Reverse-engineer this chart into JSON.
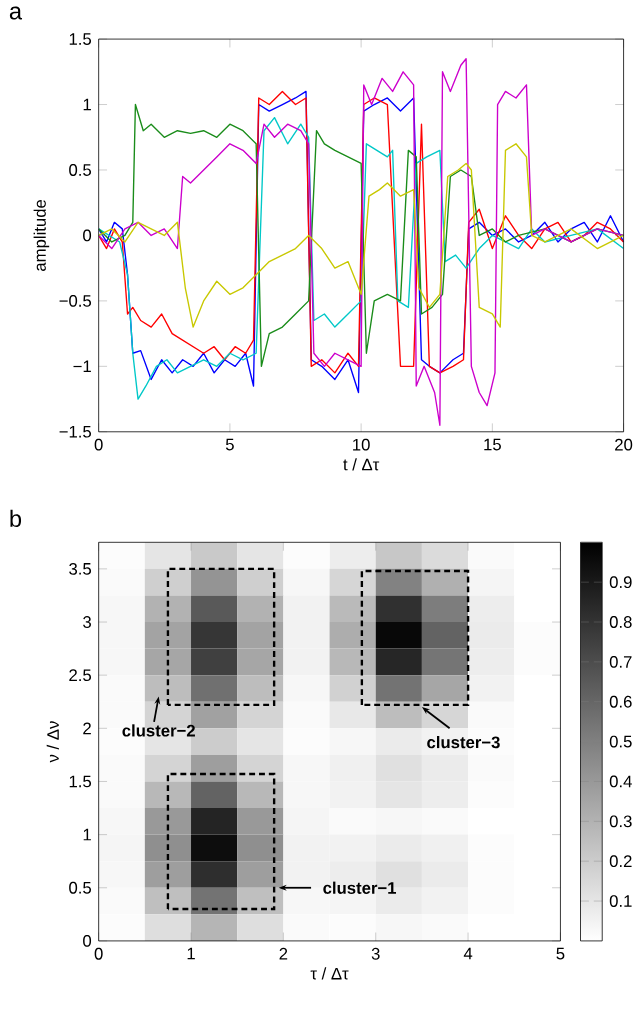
{
  "chart_data": [
    {
      "type": "line",
      "title": "a",
      "xlabel": "t / Δτ",
      "ylabel": "amplitude",
      "xlim": [
        0,
        20
      ],
      "xticks": [
        0,
        5,
        10,
        15,
        20
      ],
      "ylim": [
        -1.5,
        1.5
      ],
      "yticks": [
        {
          "value": -1.5,
          "label": "−1.5"
        },
        {
          "value": -1,
          "label": "−1"
        },
        {
          "value": -0.5,
          "label": "−0.5"
        },
        0,
        0.5,
        1,
        1.5
      ],
      "series": [
        {
          "color": "#0000ff",
          "x": [
            0,
            0.3,
            0.6,
            0.9,
            1.1,
            1.3,
            1.6,
            2,
            2.4,
            2.8,
            3.2,
            3.6,
            4,
            4.4,
            4.8,
            5.2,
            5.6,
            5.9,
            6.1,
            6.5,
            7,
            7.5,
            7.9,
            8.1,
            8.5,
            9,
            9.5,
            9.9,
            10.1,
            10.5,
            11,
            11.5,
            12,
            12.3,
            12.6,
            13,
            13.5,
            13.9,
            14.1,
            14.5,
            15,
            15.5,
            16,
            16.5,
            17,
            17.5,
            18,
            18.5,
            19,
            19.5,
            20
          ],
          "values": [
            0.05,
            -0.05,
            0.1,
            0.05,
            -0.3,
            -0.9,
            -0.88,
            -1.1,
            -0.95,
            -1.05,
            -0.95,
            -1.0,
            -0.9,
            -1.05,
            -0.95,
            -1.0,
            -0.9,
            -1.15,
            1.0,
            0.95,
            1.0,
            1.05,
            1.1,
            -0.95,
            -1.0,
            -1.1,
            -0.95,
            -1.2,
            0.95,
            1.0,
            1.05,
            0.95,
            1.05,
            -0.95,
            -1.0,
            -1.05,
            -0.95,
            -0.9,
            0.05,
            0.1,
            0.0,
            0.05,
            -0.05,
            0.0,
            0.1,
            -0.05,
            0.05,
            0.1,
            -0.05,
            0.15,
            -0.05
          ]
        },
        {
          "color": "#ff0000",
          "x": [
            0,
            0.3,
            0.6,
            0.9,
            1.1,
            1.3,
            1.6,
            2,
            2.4,
            2.8,
            3.2,
            3.6,
            4,
            4.4,
            4.8,
            5.2,
            5.6,
            5.9,
            6.1,
            6.5,
            7,
            7.5,
            7.9,
            8.1,
            8.5,
            9,
            9.5,
            9.9,
            10.1,
            10.5,
            11,
            11.5,
            12,
            12.3,
            12.6,
            13,
            13.5,
            13.9,
            14.1,
            14.5,
            15,
            15.5,
            16,
            16.5,
            17,
            17.5,
            18,
            18.5,
            19,
            19.5,
            20
          ],
          "values": [
            0,
            -0.1,
            0.05,
            -0.05,
            -0.6,
            -0.55,
            -0.65,
            -0.7,
            -0.6,
            -0.75,
            -0.8,
            -0.85,
            -0.9,
            -0.85,
            -0.95,
            -0.85,
            -0.9,
            -0.8,
            1.05,
            1.0,
            1.1,
            1.0,
            1.05,
            -1.0,
            -0.95,
            -1.05,
            -0.9,
            -1.0,
            1.0,
            1.05,
            1.0,
            -1.0,
            -1.0,
            0.85,
            -1.0,
            -1.05,
            -1.0,
            -0.95,
            0.1,
            0.2,
            -0.1,
            0.15,
            0.0,
            -0.1,
            0.05,
            0.1,
            -0.05,
            0.0,
            0.1,
            0.05,
            -0.05
          ]
        },
        {
          "color": "#00c8c8",
          "x": [
            0,
            0.4,
            0.8,
            1.1,
            1.3,
            1.5,
            1.8,
            2.2,
            2.6,
            3,
            3.5,
            4,
            4.5,
            5,
            5.5,
            6,
            6.3,
            6.7,
            7.2,
            7.7,
            8.0,
            8.2,
            8.6,
            9,
            9.5,
            10,
            10.2,
            10.6,
            11,
            11.2,
            11.4,
            11.8,
            12.1,
            12.5,
            13,
            13.2,
            13.6,
            14,
            14.5,
            15,
            15.5,
            16,
            16.5,
            17,
            18,
            19,
            20
          ],
          "values": [
            0.05,
            0,
            -0.05,
            -0.3,
            -0.9,
            -1.25,
            -1.15,
            -1.0,
            -0.95,
            -1.05,
            -1.0,
            -0.95,
            -1.0,
            -0.9,
            -0.95,
            -0.9,
            0.8,
            0.9,
            0.7,
            0.85,
            0.75,
            -0.65,
            -0.6,
            -0.7,
            -0.6,
            -0.5,
            0.7,
            0.65,
            0.6,
            0.65,
            -0.5,
            -0.55,
            0.55,
            0.6,
            0.65,
            -0.2,
            -0.15,
            -0.25,
            -0.1,
            0.0,
            -0.05,
            -0.1,
            0.05,
            -0.05,
            0.0,
            0.05,
            -0.1
          ]
        },
        {
          "color": "#1a8c1a",
          "x": [
            0,
            0.5,
            1,
            1.3,
            1.4,
            1.7,
            2,
            2.5,
            3,
            3.5,
            4,
            4.5,
            5,
            5.5,
            6,
            6.2,
            6.5,
            7,
            7.5,
            8,
            8.3,
            8.6,
            9,
            9.5,
            10,
            10.2,
            10.5,
            11,
            11.5,
            11.8,
            12.1,
            12.3,
            12.7,
            13.1,
            13.4,
            13.8,
            14.2,
            14.5,
            15,
            15.5,
            16,
            17,
            18,
            19,
            20
          ],
          "values": [
            0.05,
            -0.05,
            0.0,
            0.1,
            1.0,
            0.8,
            0.85,
            0.75,
            0.8,
            0.78,
            0.8,
            0.75,
            0.85,
            0.8,
            0.7,
            -1.0,
            -0.75,
            -0.7,
            -0.6,
            -0.5,
            0.8,
            0.7,
            0.65,
            0.6,
            0.55,
            -0.9,
            -0.5,
            -0.45,
            -0.5,
            0.65,
            0.6,
            -0.6,
            -0.55,
            -0.45,
            0.45,
            0.5,
            0.45,
            0.0,
            0.05,
            -0.05,
            0.0,
            0.05,
            -0.05,
            0.05,
            0.0
          ]
        },
        {
          "color": "#cc00cc",
          "x": [
            0,
            0.5,
            1,
            1.5,
            2,
            2.5,
            3,
            3.2,
            3.5,
            4,
            4.5,
            5,
            5.5,
            6,
            6.3,
            6.7,
            7.2,
            7.7,
            8.0,
            8.2,
            8.6,
            9,
            9.5,
            10,
            10.1,
            10.4,
            10.8,
            11.2,
            11.6,
            12.0,
            12.1,
            12.4,
            12.8,
            13,
            13.1,
            13.4,
            13.8,
            14,
            14.2,
            14.5,
            14.8,
            15.1,
            15.2,
            15.5,
            15.9,
            16.3,
            16.5,
            17,
            18,
            19,
            20
          ],
          "values": [
            0.0,
            -0.1,
            0.05,
            0.1,
            0.0,
            0.05,
            -0.1,
            0.45,
            0.4,
            0.5,
            0.6,
            0.7,
            0.65,
            0.55,
            0.85,
            0.75,
            0.85,
            0.8,
            0.7,
            -0.9,
            -1.0,
            -0.9,
            -0.95,
            -1.0,
            1.15,
            1.0,
            1.2,
            1.1,
            1.25,
            1.15,
            -1.15,
            -1.0,
            -1.2,
            -1.45,
            1.25,
            1.1,
            1.3,
            1.35,
            -1.0,
            -1.2,
            -1.3,
            -1.05,
            1.0,
            1.1,
            1.05,
            1.15,
            0.0,
            0.05,
            -0.05,
            0.05,
            0.0
          ]
        },
        {
          "color": "#c8c800",
          "x": [
            0,
            0.5,
            1,
            1.5,
            2,
            2.5,
            3,
            3.3,
            3.6,
            4,
            4.5,
            5,
            5.5,
            6,
            6.5,
            7,
            7.5,
            8,
            8.5,
            9,
            9.5,
            10,
            10.3,
            10.7,
            11,
            11.5,
            12,
            12.2,
            12.6,
            13,
            13.3,
            13.7,
            14,
            14.2,
            14.5,
            15,
            15.3,
            15.5,
            15.9,
            16.3,
            16.5,
            17,
            18,
            19,
            20
          ],
          "values": [
            0.0,
            0.05,
            -0.05,
            0.1,
            0.05,
            0.0,
            0.1,
            -0.4,
            -0.7,
            -0.5,
            -0.35,
            -0.45,
            -0.4,
            -0.3,
            -0.2,
            -0.15,
            -0.1,
            0.0,
            -0.1,
            -0.25,
            -0.2,
            -0.45,
            0.3,
            0.35,
            0.4,
            0.3,
            0.35,
            -0.4,
            -0.55,
            -0.45,
            0.45,
            0.5,
            0.55,
            0.5,
            -0.55,
            -0.6,
            -0.7,
            0.65,
            0.7,
            0.6,
            0.0,
            -0.05,
            0.05,
            -0.1,
            0.0
          ]
        }
      ]
    },
    {
      "type": "heatmap",
      "title": "b",
      "xlabel": "τ / Δτ",
      "ylabel": "ν / Δν",
      "xlim": [
        0,
        5
      ],
      "xticks": [
        0,
        1,
        2,
        3,
        4,
        5
      ],
      "ylim": [
        0,
        3.75
      ],
      "yticks": [
        0,
        0.5,
        1,
        1.5,
        2,
        2.5,
        3,
        3.5
      ],
      "clim": [
        0,
        1
      ],
      "cticks": [
        0.1,
        0.2,
        0.3,
        0.4,
        0.5,
        0.6,
        0.7,
        0.8,
        0.9
      ],
      "cells": [
        [
          0.01,
          0.1,
          0.21,
          0.1,
          0.01,
          0.07,
          0.22,
          0.14,
          0.02,
          0
        ],
        [
          0.02,
          0.19,
          0.42,
          0.19,
          0.03,
          0.16,
          0.49,
          0.31,
          0.04,
          0
        ],
        [
          0.03,
          0.3,
          0.65,
          0.3,
          0.05,
          0.27,
          0.81,
          0.51,
          0.07,
          0
        ],
        [
          0.03,
          0.36,
          0.79,
          0.36,
          0.05,
          0.32,
          0.97,
          0.61,
          0.08,
          0.01
        ],
        [
          0.03,
          0.35,
          0.75,
          0.35,
          0.05,
          0.28,
          0.85,
          0.54,
          0.07,
          0.01
        ],
        [
          0.02,
          0.26,
          0.56,
          0.26,
          0.03,
          0.18,
          0.55,
          0.35,
          0.05,
          0
        ],
        [
          0.02,
          0.17,
          0.37,
          0.17,
          0.02,
          0.09,
          0.26,
          0.16,
          0.02,
          0
        ],
        [
          0.01,
          0.1,
          0.2,
          0.1,
          0.01,
          0.03,
          0.08,
          0.05,
          0.01,
          0
        ],
        [
          0.02,
          0.17,
          0.38,
          0.17,
          0.03,
          0.06,
          0.12,
          0.08,
          0.02,
          0
        ],
        [
          0.02,
          0.28,
          0.61,
          0.28,
          0.03,
          0.05,
          0.1,
          0.07,
          0.01,
          0
        ],
        [
          0.03,
          0.4,
          0.86,
          0.4,
          0.04,
          0.02,
          0.03,
          0.02,
          0,
          0
        ],
        [
          0.04,
          0.44,
          0.95,
          0.44,
          0.05,
          0.05,
          0.08,
          0.06,
          0.01,
          0
        ],
        [
          0.03,
          0.38,
          0.82,
          0.38,
          0.05,
          0.07,
          0.12,
          0.08,
          0.01,
          0
        ],
        [
          0.02,
          0.25,
          0.55,
          0.25,
          0.03,
          0.04,
          0.08,
          0.05,
          0.01,
          0
        ],
        [
          0.01,
          0.13,
          0.29,
          0.13,
          0.02,
          0.01,
          0.03,
          0.02,
          0,
          0
        ]
      ],
      "annotations": [
        {
          "text": "cluster−1",
          "x": 1.95,
          "y": 0.5
        },
        {
          "text": "cluster−2",
          "x": 0.65,
          "y": 2.3
        },
        {
          "text": "cluster−3",
          "x": 3.5,
          "y": 2.2
        }
      ]
    }
  ]
}
